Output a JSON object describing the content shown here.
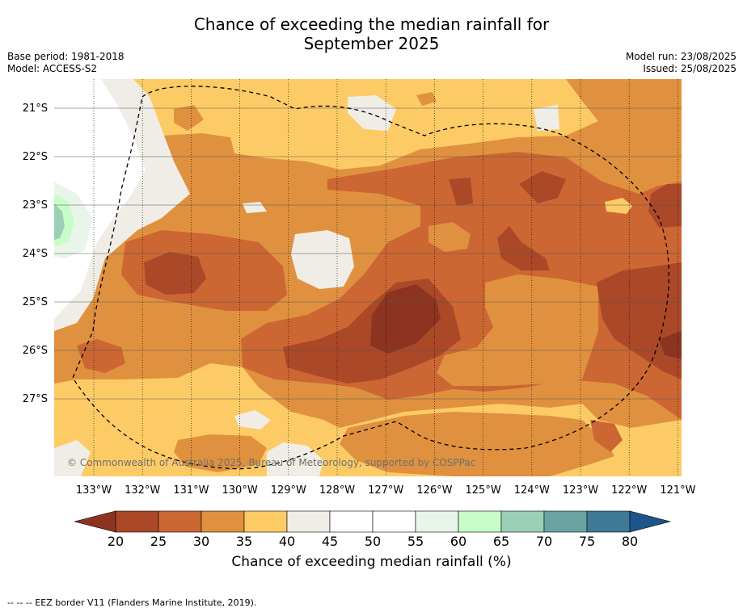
{
  "title_line1": "Chance of exceeding the median rainfall for",
  "title_line2": "September 2025",
  "base_period": "Base period: 1981-2018",
  "model": "Model: ACCESS-S2",
  "model_run": "Model run: 23/08/2025",
  "issued": "Issued: 25/08/2025",
  "copyright": "© Commonwealth of Australia 2025, Bureau of Meteorology, supported by COSPPac",
  "lon_labels": [
    "133°W",
    "132°W",
    "131°W",
    "130°W",
    "129°W",
    "128°W",
    "127°W",
    "126°W",
    "125°W",
    "124°W",
    "123°W",
    "122°W",
    "121°W"
  ],
  "lat_labels": [
    "21°S",
    "22°S",
    "23°S",
    "24°S",
    "25°S",
    "26°S",
    "27°S"
  ],
  "colorbar": {
    "ticks": [
      "20",
      "25",
      "30",
      "35",
      "40",
      "45",
      "50",
      "55",
      "60",
      "65",
      "70",
      "75",
      "80"
    ],
    "colors": [
      "#ab4828",
      "#cc6633",
      "#e0913f",
      "#fdcb66",
      "#f0ede7",
      "#ffffff",
      "#ffffff",
      "#e8f5e8",
      "#c8fcc8",
      "#9ccfb8",
      "#6ba3a3",
      "#407898"
    ],
    "under_color": "#8c3420",
    "over_color": "#1d5588",
    "label": "Chance of exceeding median rainfall (%)"
  },
  "footnote": "--  --  -- EEZ border V11 (Flanders Marine Institute, 2019)."
}
